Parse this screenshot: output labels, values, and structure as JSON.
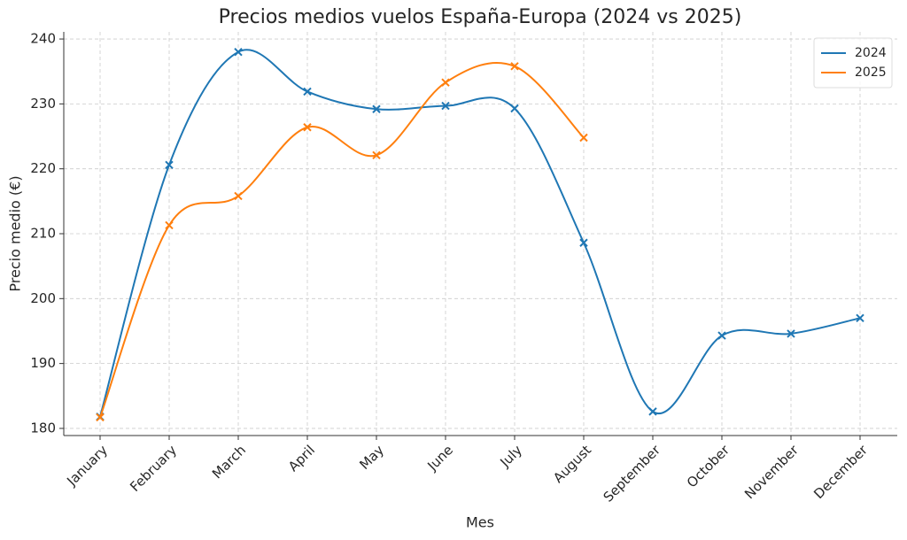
{
  "chart_data": {
    "type": "line",
    "title": "Precios medios vuelos España-Europa (2024 vs 2025)",
    "x_label": "Mes",
    "y_label": "Precio medio (€)",
    "categories": [
      "January",
      "February",
      "March",
      "April",
      "May",
      "June",
      "July",
      "August",
      "September",
      "October",
      "November",
      "December"
    ],
    "series": [
      {
        "name": "2024",
        "color": "#1f77b4",
        "values": [
          181.8,
          220.6,
          238.0,
          231.9,
          229.2,
          229.7,
          229.3,
          208.6,
          182.6,
          194.3,
          194.6,
          197.0
        ]
      },
      {
        "name": "2025",
        "color": "#ff7f0e",
        "values": [
          181.7,
          211.3,
          215.8,
          226.4,
          222.1,
          233.3,
          235.8,
          224.8,
          null,
          null,
          null,
          null
        ]
      }
    ],
    "ylim": [
      178.9,
      241.1
    ],
    "yticks": [
      180,
      190,
      200,
      210,
      220,
      230,
      240
    ],
    "grid": true,
    "legend": "upper right",
    "smooth": true,
    "marker": "x"
  }
}
